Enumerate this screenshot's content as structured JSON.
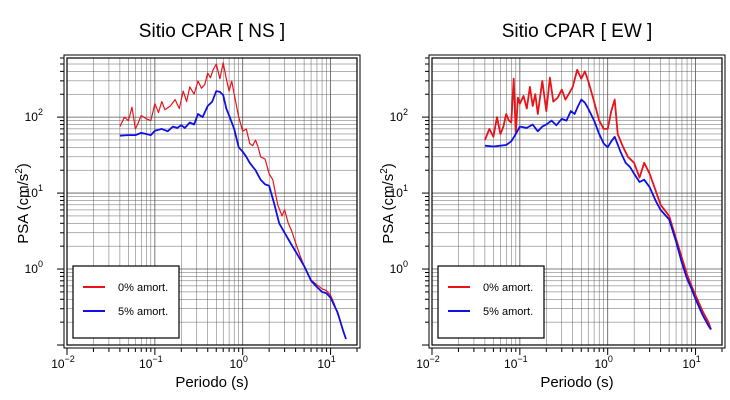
{
  "chart_data": [
    {
      "type": "line",
      "title": "Sitio CPAR [ NS ]",
      "xlabel": "Periodo (s)",
      "ylabel_main": "PSA (cm/s",
      "ylabel_sup": "2",
      "ylabel_tail": ")",
      "x_scale": "log",
      "y_scale": "log",
      "xlim": [
        0.01,
        20
      ],
      "ylim": [
        0.1,
        600
      ],
      "grid": true,
      "legend_position": "bottom-left",
      "x_ticks": [
        {
          "value": 0.01,
          "base": "10",
          "exp": "−2"
        },
        {
          "value": 0.1,
          "base": "10",
          "exp": "−1"
        },
        {
          "value": 1,
          "base": "10",
          "exp": "0"
        },
        {
          "value": 10,
          "base": "10",
          "exp": "1"
        }
      ],
      "y_ticks": [
        {
          "value": 1,
          "base": "10",
          "exp": "0"
        },
        {
          "value": 10,
          "base": "10",
          "exp": "1"
        },
        {
          "value": 100,
          "base": "10",
          "exp": "2"
        }
      ],
      "series": [
        {
          "name": "0% amort.",
          "color": "#e8141a",
          "x": [
            0.04,
            0.045,
            0.05,
            0.055,
            0.06,
            0.065,
            0.07,
            0.08,
            0.09,
            0.1,
            0.11,
            0.12,
            0.13,
            0.15,
            0.17,
            0.19,
            0.21,
            0.23,
            0.25,
            0.28,
            0.31,
            0.34,
            0.37,
            0.4,
            0.43,
            0.46,
            0.5,
            0.55,
            0.6,
            0.65,
            0.7,
            0.75,
            0.8,
            0.9,
            1.0,
            1.1,
            1.2,
            1.3,
            1.4,
            1.5,
            1.6,
            1.8,
            2.0,
            2.2,
            2.5,
            2.8,
            3.0,
            3.3,
            3.6,
            4.0,
            4.5,
            5.0,
            6.0,
            7.0,
            8.0,
            9.0,
            10.0,
            11.0,
            12.0,
            13.0,
            14.0,
            15.0
          ],
          "values": [
            75,
            100,
            90,
            135,
            70,
            85,
            105,
            95,
            90,
            150,
            115,
            160,
            125,
            140,
            170,
            130,
            220,
            160,
            250,
            200,
            300,
            240,
            270,
            380,
            330,
            420,
            500,
            320,
            520,
            320,
            220,
            300,
            200,
            100,
            65,
            70,
            45,
            42,
            50,
            40,
            30,
            28,
            18,
            15,
            7,
            5,
            6,
            4,
            3.2,
            2.2,
            1.5,
            1.1,
            0.72,
            0.62,
            0.55,
            0.52,
            0.45,
            0.35,
            0.26,
            0.2,
            0.15,
            0.12
          ]
        },
        {
          "name": "5% amort.",
          "color": "#1010e6",
          "x": [
            0.04,
            0.05,
            0.06,
            0.07,
            0.08,
            0.09,
            0.1,
            0.12,
            0.14,
            0.16,
            0.18,
            0.2,
            0.22,
            0.25,
            0.28,
            0.31,
            0.35,
            0.4,
            0.45,
            0.5,
            0.55,
            0.6,
            0.65,
            0.7,
            0.8,
            0.9,
            1.0,
            1.1,
            1.2,
            1.4,
            1.6,
            1.8,
            2.0,
            2.3,
            2.6,
            3.0,
            3.5,
            4.0,
            5.0,
            6.0,
            7.0,
            8.0,
            9.0,
            10.0,
            12.0,
            14.0,
            15.0
          ],
          "values": [
            57,
            58,
            58,
            62,
            60,
            58,
            66,
            70,
            65,
            75,
            72,
            78,
            72,
            85,
            80,
            110,
            100,
            140,
            160,
            220,
            215,
            195,
            130,
            105,
            70,
            40,
            35,
            30,
            25,
            20,
            15,
            13,
            12.5,
            7,
            4,
            3,
            2.2,
            1.7,
            1.1,
            0.7,
            0.58,
            0.5,
            0.48,
            0.42,
            0.27,
            0.15,
            0.12
          ]
        }
      ]
    },
    {
      "type": "line",
      "title": "Sitio CPAR [ EW ]",
      "xlabel": "Periodo (s)",
      "ylabel_main": "PSA (cm/s",
      "ylabel_sup": "2",
      "ylabel_tail": ")",
      "x_scale": "log",
      "y_scale": "log",
      "xlim": [
        0.01,
        20
      ],
      "ylim": [
        0.1,
        600
      ],
      "grid": true,
      "legend_position": "bottom-left",
      "x_ticks": [
        {
          "value": 0.01,
          "base": "10",
          "exp": "−2"
        },
        {
          "value": 0.1,
          "base": "10",
          "exp": "−1"
        },
        {
          "value": 1,
          "base": "10",
          "exp": "0"
        },
        {
          "value": 10,
          "base": "10",
          "exp": "1"
        }
      ],
      "y_ticks": [
        {
          "value": 1,
          "base": "10",
          "exp": "0"
        },
        {
          "value": 10,
          "base": "10",
          "exp": "1"
        },
        {
          "value": 100,
          "base": "10",
          "exp": "2"
        }
      ],
      "series": [
        {
          "name": "0% amort.",
          "color": "#e8141a",
          "x": [
            0.04,
            0.045,
            0.05,
            0.055,
            0.06,
            0.065,
            0.07,
            0.075,
            0.08,
            0.085,
            0.09,
            0.095,
            0.1,
            0.11,
            0.12,
            0.13,
            0.14,
            0.15,
            0.16,
            0.18,
            0.2,
            0.22,
            0.24,
            0.27,
            0.3,
            0.33,
            0.36,
            0.4,
            0.45,
            0.5,
            0.55,
            0.6,
            0.7,
            0.8,
            0.9,
            1.0,
            1.1,
            1.2,
            1.3,
            1.5,
            1.7,
            2.0,
            2.3,
            2.6,
            3.0,
            3.4,
            4.0,
            5.0,
            6.0,
            7.0,
            8.0,
            9.0,
            10.0,
            12.0,
            14.0,
            15.0
          ],
          "values": [
            50,
            70,
            55,
            100,
            60,
            75,
            110,
            90,
            85,
            320,
            60,
            180,
            150,
            190,
            130,
            250,
            140,
            200,
            110,
            300,
            120,
            330,
            160,
            180,
            230,
            170,
            200,
            250,
            420,
            320,
            400,
            300,
            160,
            90,
            70,
            70,
            120,
            170,
            60,
            40,
            30,
            25,
            16,
            25,
            18,
            12,
            7,
            5,
            2.5,
            1.4,
            0.85,
            0.6,
            0.45,
            0.28,
            0.2,
            0.16
          ]
        },
        {
          "name": "5% amort.",
          "color": "#1010e6",
          "x": [
            0.04,
            0.05,
            0.06,
            0.07,
            0.08,
            0.09,
            0.1,
            0.12,
            0.14,
            0.16,
            0.18,
            0.2,
            0.23,
            0.26,
            0.3,
            0.34,
            0.38,
            0.42,
            0.46,
            0.5,
            0.55,
            0.6,
            0.7,
            0.8,
            0.9,
            1.0,
            1.1,
            1.2,
            1.4,
            1.6,
            1.8,
            2.0,
            2.3,
            2.6,
            3.0,
            3.5,
            4.0,
            5.0,
            6.0,
            7.0,
            8.0,
            9.0,
            10.0,
            12.0,
            14.0,
            15.0
          ],
          "values": [
            42,
            41,
            42,
            43,
            48,
            60,
            75,
            72,
            80,
            65,
            75,
            80,
            90,
            78,
            95,
            90,
            120,
            110,
            140,
            170,
            155,
            130,
            90,
            60,
            45,
            40,
            48,
            55,
            35,
            25,
            22,
            18,
            14,
            15,
            12,
            8,
            6,
            4.5,
            2.3,
            1.2,
            0.75,
            0.55,
            0.4,
            0.25,
            0.18,
            0.16
          ]
        }
      ]
    }
  ]
}
